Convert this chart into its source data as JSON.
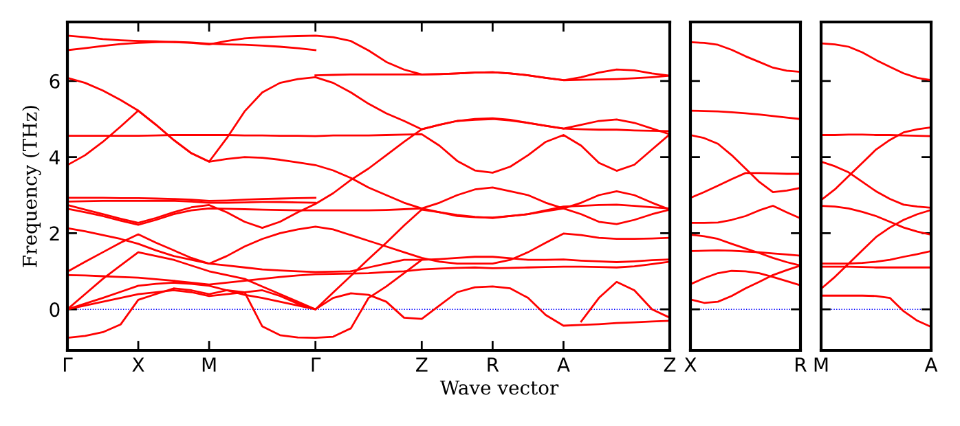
{
  "chart_data": [
    {
      "type": "line",
      "ylabel": "Frequency (THz)",
      "xlabel": "Wave vector",
      "ylim": [
        -1.08,
        7.55
      ],
      "yticks": [
        0,
        2,
        4,
        6
      ],
      "categories": [
        "Γ",
        null,
        null,
        null,
        "X",
        null,
        null,
        null,
        "M",
        null,
        null,
        null,
        null,
        null,
        "Γ",
        null,
        null,
        null,
        null,
        null,
        "Z",
        null,
        null,
        null,
        "R",
        null,
        null,
        null,
        "A",
        null,
        null,
        null,
        null,
        null,
        "Z"
      ],
      "ref_lines": [
        {
          "axis": "y",
          "value": 0,
          "color": "#0000ff",
          "line_style": "dotted"
        }
      ],
      "series": [
        {
          "color": "#ff0000",
          "values": [
            7.19,
            7.15,
            7.1,
            7.07,
            7.05,
            7.04,
            7.02,
            7.0,
            6.96,
            7.05,
            7.12,
            7.15,
            7.17,
            7.18,
            7.19,
            7.15,
            7.05,
            6.8,
            6.5,
            6.3,
            6.17,
            6.18,
            6.2,
            6.22,
            6.23,
            6.2,
            6.15,
            6.08,
            6.02,
            6.1,
            6.22,
            6.3,
            6.28,
            6.2,
            6.14
          ]
        },
        {
          "color": "#ff0000",
          "values": [
            6.81,
            6.86,
            6.92,
            6.97,
            7.0,
            7.02,
            7.03,
            7.01,
            6.98,
            6.96,
            6.95,
            6.93,
            6.9,
            6.86,
            6.81,
            null,
            null,
            null,
            null,
            null,
            null,
            null,
            null,
            null,
            null,
            null,
            null,
            null,
            null,
            null,
            null,
            null,
            null,
            null,
            null
          ]
        },
        {
          "color": "#ff0000",
          "values": [
            null,
            null,
            null,
            null,
            null,
            null,
            null,
            null,
            null,
            null,
            null,
            null,
            null,
            null,
            6.15,
            6.16,
            6.17,
            6.17,
            6.17,
            6.17,
            6.17,
            6.18,
            6.2,
            6.22,
            6.23,
            6.2,
            6.15,
            6.08,
            6.02,
            6.03,
            6.04,
            6.05,
            6.07,
            6.1,
            6.14
          ]
        },
        {
          "color": "#ff0000",
          "values": [
            6.08,
            5.95,
            5.75,
            5.5,
            5.22,
            4.85,
            4.45,
            4.1,
            3.88,
            4.5,
            5.2,
            5.7,
            5.95,
            6.05,
            6.1,
            5.95,
            5.7,
            5.4,
            5.15,
            4.95,
            4.73,
            4.85,
            4.95,
            5.0,
            5.02,
            4.98,
            4.9,
            4.82,
            4.75,
            4.85,
            4.95,
            4.99,
            4.9,
            4.75,
            4.6
          ]
        },
        {
          "color": "#ff0000",
          "values": [
            3.79,
            4.05,
            4.4,
            4.8,
            5.22,
            4.85,
            4.45,
            4.1,
            3.88,
            3.95,
            4.0,
            3.98,
            3.93,
            3.86,
            3.79,
            3.65,
            3.45,
            3.2,
            3.0,
            2.8,
            2.65,
            2.55,
            2.45,
            2.42,
            2.41,
            2.45,
            2.5,
            2.58,
            2.65,
            2.5,
            2.3,
            2.24,
            2.35,
            2.5,
            2.62
          ]
        },
        {
          "color": "#ff0000",
          "values": [
            4.56,
            4.56,
            4.56,
            4.56,
            4.56,
            4.57,
            4.58,
            4.58,
            4.58,
            4.58,
            4.57,
            4.57,
            4.56,
            4.56,
            4.55,
            4.57,
            4.57,
            4.57,
            4.58,
            4.59,
            4.6,
            4.3,
            3.9,
            3.65,
            3.59,
            3.75,
            4.05,
            4.4,
            4.58,
            4.3,
            3.85,
            3.64,
            3.8,
            4.2,
            4.6
          ]
        },
        {
          "color": "#ff0000",
          "values": [
            2.74,
            2.62,
            2.5,
            2.38,
            2.27,
            2.4,
            2.55,
            2.68,
            2.74,
            2.55,
            2.3,
            2.14,
            2.3,
            2.55,
            2.77,
            3.05,
            3.4,
            3.7,
            4.05,
            4.4,
            4.73,
            4.85,
            4.95,
            4.98,
            5.0,
            4.96,
            4.9,
            4.82,
            4.75,
            4.73,
            4.72,
            4.72,
            4.7,
            4.69,
            4.68
          ]
        },
        {
          "color": "#ff0000",
          "values": [
            2.93,
            2.93,
            2.93,
            2.92,
            2.92,
            2.91,
            2.9,
            2.88,
            2.85,
            2.86,
            2.88,
            2.9,
            2.91,
            2.92,
            2.93,
            null,
            null,
            null,
            null,
            null,
            null,
            null,
            null,
            null,
            null,
            null,
            null,
            null,
            null,
            null,
            null,
            null,
            null,
            null,
            null
          ]
        },
        {
          "color": "#ff0000",
          "values": [
            2.83,
            2.84,
            2.85,
            2.85,
            2.85,
            2.85,
            2.85,
            2.83,
            2.8,
            2.8,
            2.81,
            2.82,
            2.82,
            2.81,
            2.8,
            null,
            null,
            null,
            null,
            null,
            null,
            null,
            null,
            null,
            null,
            null,
            null,
            null,
            null,
            null,
            null,
            null,
            null,
            null,
            null
          ]
        },
        {
          "color": "#ff0000",
          "values": [
            2.64,
            2.55,
            2.45,
            2.33,
            2.22,
            2.35,
            2.5,
            2.6,
            2.65,
            2.64,
            2.63,
            2.62,
            2.61,
            2.6,
            2.6,
            2.6,
            2.6,
            2.6,
            2.61,
            2.63,
            2.65,
            2.8,
            3.0,
            3.15,
            3.2,
            3.1,
            3.0,
            2.8,
            2.65,
            2.8,
            3.0,
            3.1,
            3.0,
            2.8,
            2.62
          ]
        },
        {
          "color": "#ff0000",
          "values": [
            2.13,
            2.05,
            1.95,
            1.85,
            1.72,
            1.55,
            1.4,
            1.3,
            1.2,
            1.4,
            1.65,
            1.85,
            2.0,
            2.1,
            2.17,
            2.1,
            1.95,
            1.8,
            1.65,
            1.5,
            1.35,
            1.25,
            1.2,
            1.2,
            1.2,
            1.3,
            1.5,
            1.75,
            1.99,
            1.95,
            1.88,
            1.85,
            1.85,
            1.86,
            1.88
          ]
        },
        {
          "color": "#ff0000",
          "values": [
            0.99,
            1.25,
            1.5,
            1.75,
            1.97,
            1.75,
            1.55,
            1.35,
            1.2,
            1.15,
            1.1,
            1.05,
            1.02,
            1.0,
            0.98,
            0.99,
            1.0,
            1.1,
            1.2,
            1.3,
            1.3,
            1.32,
            1.35,
            1.38,
            1.38,
            1.34,
            1.3,
            1.3,
            1.31,
            1.28,
            1.26,
            1.24,
            1.26,
            1.29,
            1.31
          ]
        },
        {
          "color": "#ff0000",
          "values": [
            0.9,
            0.89,
            0.87,
            0.85,
            0.83,
            0.79,
            0.75,
            0.7,
            0.65,
            0.7,
            0.75,
            0.8,
            0.85,
            0.89,
            0.92,
            0.93,
            0.94,
            0.95,
            0.98,
            1.0,
            1.05,
            1.07,
            1.09,
            1.1,
            1.08,
            1.09,
            1.1,
            1.11,
            1.12,
            1.12,
            1.11,
            1.1,
            1.13,
            1.19,
            1.25
          ]
        },
        {
          "color": "#ff0000",
          "values": [
            0,
            0.15,
            0.3,
            0.46,
            0.62,
            0.67,
            0.7,
            0.67,
            0.62,
            0.5,
            0.38,
            0.3,
            0.2,
            0.1,
            0,
            0.44,
            0.88,
            1.32,
            1.75,
            2.2,
            2.62,
            2.55,
            2.48,
            2.43,
            2.4,
            2.45,
            2.5,
            2.6,
            2.7,
            2.72,
            2.74,
            2.75,
            2.72,
            2.68,
            2.65
          ]
        },
        {
          "color": "#ff0000",
          "values": [
            0,
            0.4,
            0.8,
            1.15,
            1.5,
            1.4,
            1.3,
            1.15,
            1.0,
            0.9,
            0.8,
            0.6,
            0.4,
            0.2,
            0,
            null,
            null,
            null,
            null,
            null,
            null,
            null,
            null,
            null,
            null,
            null,
            null,
            null,
            null,
            null,
            null,
            null,
            null,
            null,
            null
          ]
        },
        {
          "color": "#ff0000",
          "values": [
            0,
            0.1,
            0.2,
            0.3,
            0.4,
            0.45,
            0.5,
            0.45,
            0.35,
            0.4,
            0.45,
            0.5,
            0.35,
            0.15,
            0,
            0.3,
            0.42,
            0.38,
            0.2,
            -0.22,
            -0.25,
            0.1,
            0.45,
            0.58,
            0.6,
            0.55,
            0.3,
            -0.15,
            -0.43,
            -0.41,
            -0.39,
            -0.36,
            -0.34,
            -0.32,
            -0.3
          ]
        },
        {
          "color": "#ff0000",
          "values": [
            -0.75,
            -0.7,
            -0.6,
            -0.4,
            0.25,
            0.4,
            0.55,
            0.5,
            0.4,
            0.5,
            0.45,
            -0.45,
            -0.68,
            -0.74,
            -0.75,
            -0.72,
            -0.5,
            0.3,
            0.6,
            0.95,
            1.3,
            null,
            null,
            null,
            null,
            null,
            null,
            null,
            null,
            null,
            null,
            null,
            null,
            null,
            null
          ]
        },
        {
          "color": "#ff0000",
          "values": [
            null,
            null,
            null,
            null,
            null,
            null,
            null,
            null,
            null,
            null,
            null,
            null,
            null,
            null,
            null,
            null,
            null,
            null,
            null,
            null,
            null,
            null,
            null,
            null,
            null,
            null,
            null,
            null,
            null,
            -0.32,
            0.3,
            0.72,
            0.5,
            0.0,
            -0.22
          ]
        }
      ]
    },
    {
      "type": "line",
      "ylim": [
        -1.08,
        7.55
      ],
      "yticks": [
        0,
        2,
        4,
        6
      ],
      "tick_labels": "x",
      "categories": [
        "X",
        null,
        null,
        null,
        null,
        null,
        null,
        null,
        "R"
      ],
      "ref_lines": [
        {
          "axis": "y",
          "value": 0,
          "color": "#0000ff",
          "line_style": "dotted"
        }
      ],
      "series": [
        {
          "color": "#ff0000",
          "values": [
            7.02,
            7.0,
            6.95,
            6.82,
            6.65,
            6.5,
            6.35,
            6.27,
            6.24
          ]
        },
        {
          "color": "#ff0000",
          "values": [
            5.22,
            5.21,
            5.2,
            5.18,
            5.15,
            5.12,
            5.08,
            5.04,
            5.0
          ]
        },
        {
          "color": "#ff0000",
          "values": [
            4.58,
            4.5,
            4.35,
            4.05,
            3.7,
            3.35,
            3.08,
            3.12,
            3.19
          ]
        },
        {
          "color": "#ff0000",
          "values": [
            2.93,
            3.08,
            3.25,
            3.42,
            3.58,
            3.58,
            3.57,
            3.56,
            3.56
          ]
        },
        {
          "color": "#ff0000",
          "values": [
            2.27,
            2.27,
            2.28,
            2.35,
            2.45,
            2.6,
            2.72,
            2.55,
            2.39
          ]
        },
        {
          "color": "#ff0000",
          "values": [
            1.96,
            1.92,
            1.85,
            1.72,
            1.6,
            1.48,
            1.35,
            1.24,
            1.15
          ]
        },
        {
          "color": "#ff0000",
          "values": [
            1.53,
            1.54,
            1.55,
            1.54,
            1.52,
            1.5,
            1.47,
            1.44,
            1.41
          ]
        },
        {
          "color": "#ff0000",
          "values": [
            0.66,
            0.82,
            0.95,
            1.01,
            1.0,
            0.95,
            0.85,
            0.74,
            0.63
          ]
        },
        {
          "color": "#ff0000",
          "values": [
            0.26,
            0.17,
            0.2,
            0.35,
            0.55,
            0.72,
            0.9,
            1.03,
            1.15
          ]
        }
      ]
    },
    {
      "type": "line",
      "ylim": [
        -1.08,
        7.55
      ],
      "yticks": [
        0,
        2,
        4,
        6
      ],
      "tick_labels": "x",
      "categories": [
        "M",
        null,
        null,
        null,
        null,
        null,
        null,
        null,
        "A"
      ],
      "ref_lines": [
        {
          "axis": "y",
          "value": 0,
          "color": "#0000ff",
          "line_style": "dotted"
        }
      ],
      "series": [
        {
          "color": "#ff0000",
          "values": [
            6.99,
            6.96,
            6.9,
            6.75,
            6.55,
            6.37,
            6.2,
            6.08,
            6.02
          ]
        },
        {
          "color": "#ff0000",
          "values": [
            4.58,
            4.58,
            4.59,
            4.59,
            4.58,
            4.58,
            4.57,
            4.56,
            4.55
          ]
        },
        {
          "color": "#ff0000",
          "values": [
            2.87,
            3.15,
            3.5,
            3.85,
            4.2,
            4.45,
            4.65,
            4.73,
            4.78
          ]
        },
        {
          "color": "#ff0000",
          "values": [
            3.88,
            3.76,
            3.6,
            3.35,
            3.1,
            2.9,
            2.75,
            2.7,
            2.67
          ]
        },
        {
          "color": "#ff0000",
          "values": [
            2.72,
            2.7,
            2.65,
            2.56,
            2.45,
            2.3,
            2.15,
            2.04,
            1.96
          ]
        },
        {
          "color": "#ff0000",
          "values": [
            0.54,
            0.85,
            1.2,
            1.55,
            1.9,
            2.15,
            2.35,
            2.5,
            2.61
          ]
        },
        {
          "color": "#ff0000",
          "values": [
            1.2,
            1.2,
            1.2,
            1.22,
            1.25,
            1.3,
            1.38,
            1.45,
            1.53
          ]
        },
        {
          "color": "#ff0000",
          "values": [
            1.12,
            1.12,
            1.12,
            1.11,
            1.1,
            1.1,
            1.1,
            1.1,
            1.1
          ]
        },
        {
          "color": "#ff0000",
          "values": [
            0.36,
            0.36,
            0.36,
            0.36,
            0.35,
            0.3,
            -0.05,
            -0.3,
            -0.46
          ]
        }
      ]
    }
  ]
}
